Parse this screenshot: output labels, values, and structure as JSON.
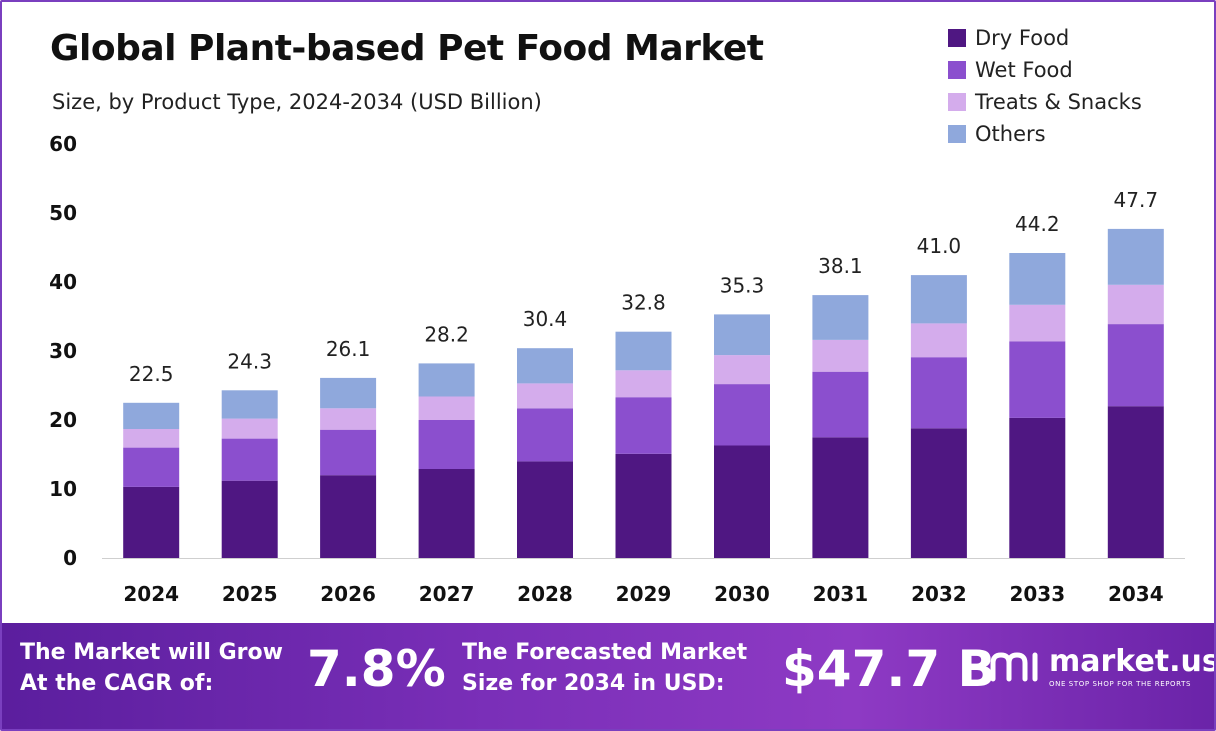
{
  "title": "Global Plant-based Pet Food Market",
  "subtitle": "Size, by Product Type, 2024-2034 (USD Billion)",
  "legend": [
    {
      "label": "Dry Food",
      "color": "#4f1782"
    },
    {
      "label": "Wet Food",
      "color": "#8b4fce"
    },
    {
      "label": "Treats & Snacks",
      "color": "#d4acec"
    },
    {
      "label": "Others",
      "color": "#8fa8dc"
    }
  ],
  "chart_data": {
    "type": "bar",
    "stacked": true,
    "title": "Global Plant-based Pet Food Market",
    "subtitle": "Size, by Product Type, 2024-2034 (USD Billion)",
    "categories": [
      "2024",
      "2025",
      "2026",
      "2027",
      "2028",
      "2029",
      "2030",
      "2031",
      "2032",
      "2033",
      "2034"
    ],
    "series": [
      {
        "name": "Dry Food",
        "color": "#4f1782",
        "values": [
          10.3,
          11.2,
          12.0,
          12.9,
          14.0,
          15.1,
          16.3,
          17.5,
          18.8,
          20.3,
          22.0
        ]
      },
      {
        "name": "Wet Food",
        "color": "#8b4fce",
        "values": [
          5.7,
          6.1,
          6.6,
          7.1,
          7.7,
          8.2,
          8.9,
          9.5,
          10.3,
          11.1,
          11.9
        ]
      },
      {
        "name": "Treats & Snacks",
        "color": "#d4acec",
        "values": [
          2.7,
          2.9,
          3.1,
          3.4,
          3.6,
          3.9,
          4.2,
          4.6,
          4.9,
          5.3,
          5.7
        ]
      },
      {
        "name": "Others",
        "color": "#8fa8dc",
        "values": [
          3.8,
          4.1,
          4.4,
          4.8,
          5.1,
          5.6,
          5.9,
          6.5,
          7.0,
          7.5,
          8.1
        ]
      }
    ],
    "totals": [
      "22.5",
      "24.3",
      "26.1",
      "28.2",
      "30.4",
      "32.8",
      "35.3",
      "38.1",
      "41.0",
      "44.2",
      "47.7"
    ],
    "total_values": [
      22.5,
      24.3,
      26.1,
      28.2,
      30.4,
      32.8,
      35.3,
      38.1,
      41.0,
      44.2,
      47.7
    ],
    "yticks": [
      "0",
      "10",
      "20",
      "30",
      "40",
      "50",
      "60"
    ],
    "ylim": [
      0,
      60
    ],
    "grid": false,
    "legend_position": "top-right"
  },
  "footer": {
    "cagr_line1": "The Market will Grow",
    "cagr_line2": "At the CAGR of:",
    "cagr_value": "7.8%",
    "forecast_line1": "The Forecasted Market",
    "forecast_line2": "Size for 2034 in USD:",
    "forecast_value": "$47.7 B",
    "brand_name": "market.us",
    "brand_tagline": "ONE STOP SHOP FOR THE REPORTS"
  }
}
